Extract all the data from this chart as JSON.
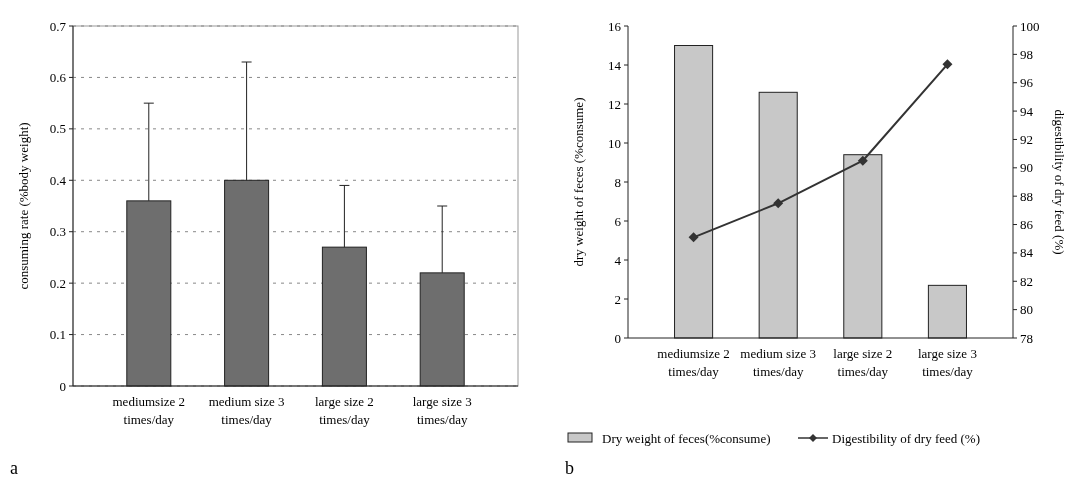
{
  "chart_data": [
    {
      "type": "bar",
      "title": "a",
      "ylabel": "consuming rate (%body weight)",
      "categories": [
        "mediumsize 2 times/day",
        "medium size 3 times/day",
        "large size 2 times/day",
        "large size 3 times/day"
      ],
      "values": [
        0.36,
        0.4,
        0.27,
        0.22
      ],
      "color": "#6e6e6e",
      "errors": [
        [
          0.36,
          0.55
        ],
        [
          0.4,
          0.63
        ],
        [
          0.27,
          0.39
        ],
        [
          0.22,
          0.35
        ]
      ],
      "ylim": [
        0,
        0.7
      ],
      "yticks": [
        0,
        0.1,
        0.2,
        0.3,
        0.4,
        0.5,
        0.6,
        0.7
      ],
      "grid": "y",
      "legend": false
    },
    {
      "type": "bar",
      "title": "b",
      "ylabel": "dry weight of feces (%consume)",
      "y2label": "digestibility of dry feed (%)",
      "categories": [
        "mediumsize 2 times/day",
        "medium size 3 times/day",
        "large size 2 times/day",
        "large size 3 times/day"
      ],
      "series": [
        {
          "name": "Dry weight of feces(%consume)",
          "type": "bar",
          "color": "#c8c8c8",
          "values": [
            15.0,
            12.6,
            9.4,
            2.7
          ]
        },
        {
          "name": "Digestibility of dry feed (%)",
          "type": "line",
          "axis": "y2",
          "color": "#333333",
          "marker": "diamond",
          "values": [
            85.1,
            87.5,
            90.5,
            97.3
          ]
        }
      ],
      "ylim": [
        0,
        16
      ],
      "yticks": [
        0,
        2,
        4,
        6,
        8,
        10,
        12,
        14,
        16
      ],
      "y2lim": [
        78,
        100
      ],
      "y2ticks": [
        78,
        80,
        82,
        84,
        86,
        88,
        90,
        92,
        94,
        96,
        98,
        100
      ],
      "grid": false,
      "legend": "bottom"
    }
  ]
}
